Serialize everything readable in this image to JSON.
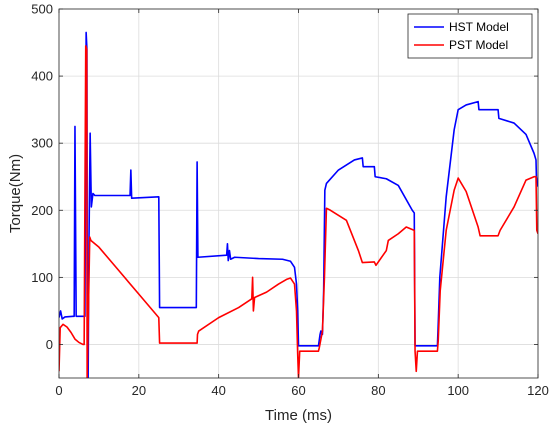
{
  "chart_data": {
    "type": "line",
    "title": "",
    "xlabel": "Time (ms)",
    "ylabel": "Torque(Nm)",
    "xlim": [
      0,
      120
    ],
    "ylim": [
      -50,
      500
    ],
    "xticks": [
      0,
      20,
      40,
      60,
      80,
      100,
      120
    ],
    "yticks": [
      0,
      100,
      200,
      300,
      400,
      500
    ],
    "xtick_labels": [
      "0",
      "20",
      "40",
      "60",
      "80",
      "100",
      "120"
    ],
    "ytick_labels": [
      "0",
      "100",
      "200",
      "300",
      "400",
      "500"
    ],
    "grid": true,
    "legend": "top-right",
    "series": [
      {
        "name": "HST Model",
        "color": "#0000ff",
        "points": [
          [
            0,
            40
          ],
          [
            0.4,
            50
          ],
          [
            0.8,
            38
          ],
          [
            1.5,
            41
          ],
          [
            3.5,
            42
          ],
          [
            3.8,
            42
          ],
          [
            4.0,
            325
          ],
          [
            4.3,
            42
          ],
          [
            6.3,
            42
          ],
          [
            6.5,
            42
          ],
          [
            6.8,
            465
          ],
          [
            7.0,
            440
          ],
          [
            7.1,
            -50
          ],
          [
            7.3,
            -50
          ],
          [
            7.5,
            150
          ],
          [
            7.8,
            315
          ],
          [
            8.1,
            205
          ],
          [
            8.5,
            225
          ],
          [
            9.0,
            222
          ],
          [
            17.8,
            222
          ],
          [
            18.0,
            260
          ],
          [
            18.2,
            218
          ],
          [
            25.0,
            220
          ],
          [
            25.2,
            55
          ],
          [
            34.4,
            55
          ],
          [
            34.6,
            272
          ],
          [
            34.8,
            130
          ],
          [
            42.0,
            133
          ],
          [
            42.2,
            150
          ],
          [
            42.4,
            125
          ],
          [
            42.7,
            140
          ],
          [
            43.0,
            127
          ],
          [
            44.0,
            130
          ],
          [
            50.0,
            128
          ],
          [
            56.0,
            127
          ],
          [
            58.0,
            124
          ],
          [
            59.0,
            115
          ],
          [
            59.5,
            90
          ],
          [
            59.8,
            50
          ],
          [
            60.0,
            -2
          ],
          [
            65.0,
            -2
          ],
          [
            65.4,
            15
          ],
          [
            65.6,
            20
          ],
          [
            66.0,
            15
          ],
          [
            66.3,
            80
          ],
          [
            66.6,
            230
          ],
          [
            67.0,
            240
          ],
          [
            70.0,
            260
          ],
          [
            74.0,
            275
          ],
          [
            76.0,
            278
          ],
          [
            76.2,
            265
          ],
          [
            79.0,
            265
          ],
          [
            79.2,
            250
          ],
          [
            82.0,
            247
          ],
          [
            85.0,
            237
          ],
          [
            88.5,
            200
          ],
          [
            89.0,
            196
          ],
          [
            89.2,
            -2
          ],
          [
            94.8,
            -2
          ],
          [
            95.0,
            30
          ],
          [
            95.4,
            100
          ],
          [
            97.0,
            220
          ],
          [
            99.0,
            320
          ],
          [
            100.0,
            350
          ],
          [
            102.0,
            357
          ],
          [
            105.0,
            362
          ],
          [
            105.2,
            350
          ],
          [
            110.0,
            350
          ],
          [
            110.2,
            337
          ],
          [
            114.0,
            330
          ],
          [
            117.0,
            313
          ],
          [
            119.0,
            285
          ],
          [
            119.5,
            275
          ],
          [
            119.6,
            250
          ],
          [
            120,
            235
          ]
        ]
      },
      {
        "name": "PST Model",
        "color": "#ff0000",
        "points": [
          [
            0,
            -40
          ],
          [
            0.3,
            25
          ],
          [
            1.0,
            30
          ],
          [
            2.0,
            26
          ],
          [
            3.0,
            18
          ],
          [
            4.0,
            8
          ],
          [
            5.0,
            3
          ],
          [
            6.0,
            0
          ],
          [
            6.3,
            0
          ],
          [
            6.7,
            445
          ],
          [
            6.95,
            440
          ],
          [
            7.05,
            -50
          ],
          [
            7.4,
            60
          ],
          [
            7.7,
            160
          ],
          [
            8.0,
            155
          ],
          [
            10.0,
            145
          ],
          [
            15.0,
            110
          ],
          [
            20.0,
            75
          ],
          [
            25.0,
            40
          ],
          [
            25.2,
            2
          ],
          [
            34.6,
            2
          ],
          [
            34.7,
            15
          ],
          [
            35.0,
            20
          ],
          [
            40.0,
            40
          ],
          [
            45.0,
            55
          ],
          [
            48.3,
            68
          ],
          [
            48.5,
            100
          ],
          [
            48.7,
            50
          ],
          [
            49.0,
            70
          ],
          [
            52.0,
            78
          ],
          [
            55.0,
            90
          ],
          [
            57.0,
            97
          ],
          [
            58.0,
            99
          ],
          [
            59.0,
            90
          ],
          [
            59.5,
            50
          ],
          [
            59.8,
            -15
          ],
          [
            60.0,
            -50
          ],
          [
            60.3,
            -10
          ],
          [
            65.0,
            -10
          ],
          [
            65.2,
            -5
          ],
          [
            66.0,
            20
          ],
          [
            66.5,
            100
          ],
          [
            67.0,
            203
          ],
          [
            68.0,
            200
          ],
          [
            72.0,
            185
          ],
          [
            75.0,
            140
          ],
          [
            76.0,
            122
          ],
          [
            79.0,
            123
          ],
          [
            79.4,
            118
          ],
          [
            82.0,
            140
          ],
          [
            82.5,
            155
          ],
          [
            85.0,
            165
          ],
          [
            87.0,
            175
          ],
          [
            89.0,
            170
          ],
          [
            89.2,
            -10
          ],
          [
            89.5,
            -40
          ],
          [
            89.8,
            -10
          ],
          [
            94.8,
            -10
          ],
          [
            95.0,
            5
          ],
          [
            95.5,
            80
          ],
          [
            97.0,
            170
          ],
          [
            99.0,
            230
          ],
          [
            100.0,
            248
          ],
          [
            102.0,
            228
          ],
          [
            105.0,
            175
          ],
          [
            105.5,
            162
          ],
          [
            110.0,
            162
          ],
          [
            110.5,
            170
          ],
          [
            113.0,
            195
          ],
          [
            114.0,
            205
          ],
          [
            117.0,
            245
          ],
          [
            119.0,
            250
          ],
          [
            119.5,
            250
          ],
          [
            119.7,
            170
          ],
          [
            120,
            165
          ]
        ]
      }
    ]
  }
}
